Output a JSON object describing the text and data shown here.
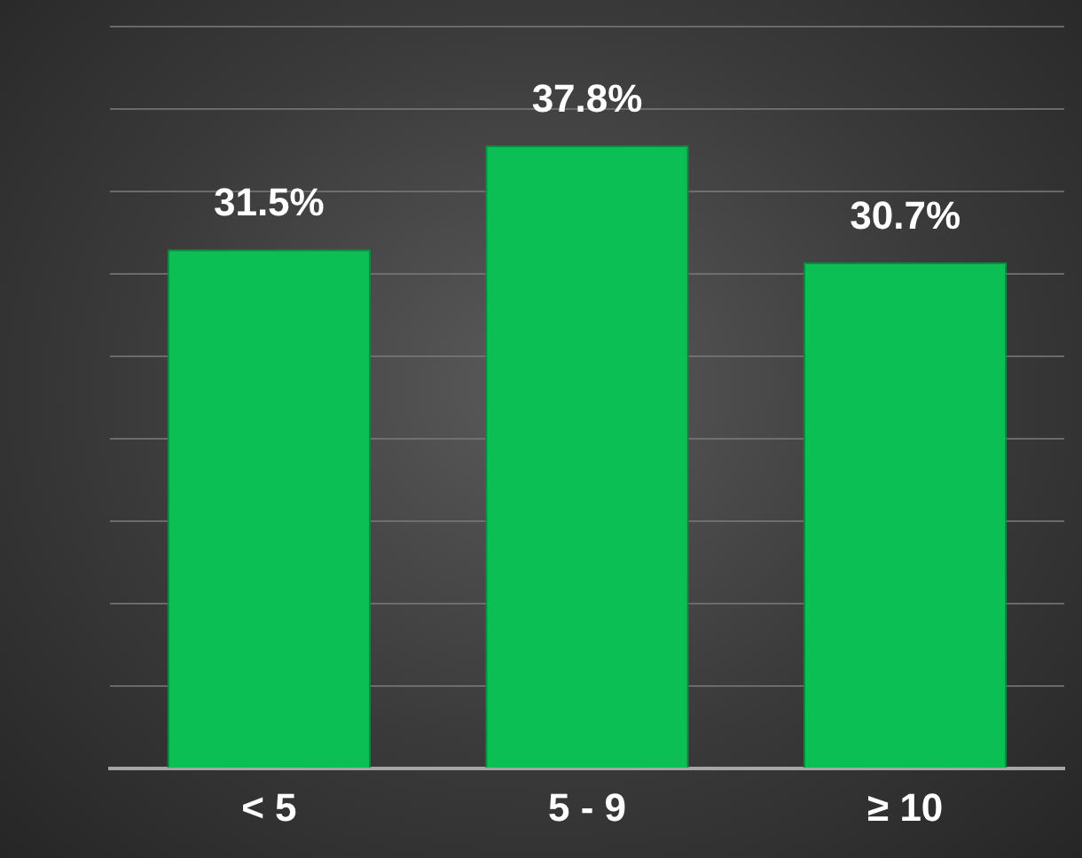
{
  "chart_data": {
    "type": "bar",
    "categories": [
      "< 5",
      "5 - 9",
      "≥ 10"
    ],
    "values": [
      31.5,
      37.8,
      30.7
    ],
    "value_labels": [
      "31.5%",
      "37.8%",
      "30.7%"
    ],
    "color": "#0cbf55",
    "ylim": [
      0,
      45
    ],
    "yticks": [
      {
        "value": 0,
        "label": null
      },
      {
        "value": 5,
        "label": null
      },
      {
        "value": 10,
        "label": null
      },
      {
        "value": 15,
        "label": null
      },
      {
        "value": 20,
        "label": null
      },
      {
        "value": 25,
        "label": null
      },
      {
        "value": 30,
        "label": null
      },
      {
        "value": 35,
        "label": null
      },
      {
        "value": 40,
        "label": null
      },
      {
        "value": 45,
        "label": null
      }
    ],
    "grid": "y",
    "tick_labels": "x",
    "legend": false
  }
}
